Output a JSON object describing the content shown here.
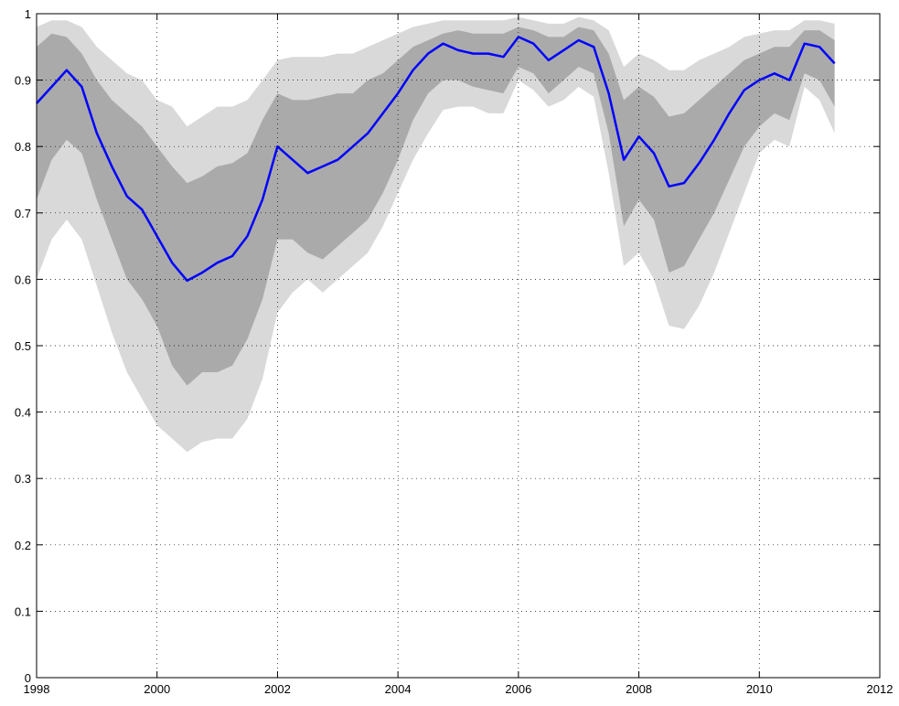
{
  "chart_data": {
    "type": "line",
    "x": [
      1998,
      1998.25,
      1998.5,
      1998.75,
      1999,
      1999.25,
      1999.5,
      1999.75,
      2000,
      2000.25,
      2000.5,
      2000.75,
      2001,
      2001.25,
      2001.5,
      2001.75,
      2002,
      2002.25,
      2002.5,
      2002.75,
      2003,
      2003.25,
      2003.5,
      2003.75,
      2004,
      2004.25,
      2004.5,
      2004.75,
      2005,
      2005.25,
      2005.5,
      2005.75,
      2006,
      2006.25,
      2006.5,
      2006.75,
      2007,
      2007.25,
      2007.5,
      2007.75,
      2008,
      2008.25,
      2008.5,
      2008.75,
      2009,
      2009.25,
      2009.5,
      2009.75,
      2010,
      2010.25,
      2010.5,
      2010.75,
      2011,
      2011.25
    ],
    "bands": [
      {
        "color": "#d9d9d9",
        "upper": [
          0.98,
          0.99,
          0.99,
          0.98,
          0.95,
          0.93,
          0.91,
          0.9,
          0.87,
          0.86,
          0.83,
          0.845,
          0.86,
          0.86,
          0.87,
          0.9,
          0.93,
          0.935,
          0.935,
          0.935,
          0.94,
          0.94,
          0.95,
          0.96,
          0.97,
          0.98,
          0.985,
          0.99,
          0.99,
          0.99,
          0.99,
          0.99,
          0.995,
          0.99,
          0.985,
          0.985,
          0.995,
          0.99,
          0.975,
          0.92,
          0.94,
          0.93,
          0.915,
          0.915,
          0.93,
          0.94,
          0.95,
          0.965,
          0.97,
          0.975,
          0.975,
          0.99,
          0.99,
          0.985
        ],
        "lower": [
          0.6,
          0.66,
          0.69,
          0.66,
          0.59,
          0.52,
          0.46,
          0.42,
          0.38,
          0.36,
          0.34,
          0.355,
          0.36,
          0.36,
          0.39,
          0.45,
          0.55,
          0.58,
          0.6,
          0.58,
          0.6,
          0.62,
          0.64,
          0.68,
          0.73,
          0.78,
          0.82,
          0.855,
          0.86,
          0.86,
          0.85,
          0.85,
          0.9,
          0.885,
          0.86,
          0.87,
          0.89,
          0.875,
          0.76,
          0.62,
          0.64,
          0.6,
          0.53,
          0.525,
          0.56,
          0.61,
          0.67,
          0.73,
          0.79,
          0.81,
          0.8,
          0.89,
          0.87,
          0.82
        ]
      },
      {
        "color": "#aaaaaa",
        "upper": [
          0.95,
          0.97,
          0.965,
          0.94,
          0.9,
          0.87,
          0.85,
          0.83,
          0.8,
          0.77,
          0.745,
          0.755,
          0.77,
          0.775,
          0.79,
          0.84,
          0.88,
          0.87,
          0.87,
          0.875,
          0.88,
          0.88,
          0.9,
          0.91,
          0.93,
          0.95,
          0.96,
          0.97,
          0.975,
          0.97,
          0.97,
          0.97,
          0.98,
          0.975,
          0.965,
          0.965,
          0.98,
          0.975,
          0.94,
          0.87,
          0.89,
          0.875,
          0.845,
          0.85,
          0.87,
          0.89,
          0.91,
          0.93,
          0.94,
          0.95,
          0.95,
          0.975,
          0.975,
          0.96
        ],
        "lower": [
          0.72,
          0.78,
          0.81,
          0.79,
          0.72,
          0.66,
          0.6,
          0.57,
          0.53,
          0.47,
          0.44,
          0.46,
          0.46,
          0.47,
          0.51,
          0.57,
          0.66,
          0.66,
          0.64,
          0.63,
          0.65,
          0.67,
          0.69,
          0.73,
          0.78,
          0.84,
          0.88,
          0.9,
          0.9,
          0.89,
          0.885,
          0.88,
          0.92,
          0.91,
          0.88,
          0.9,
          0.92,
          0.91,
          0.82,
          0.68,
          0.72,
          0.69,
          0.61,
          0.62,
          0.66,
          0.7,
          0.75,
          0.8,
          0.83,
          0.85,
          0.84,
          0.91,
          0.9,
          0.86
        ]
      }
    ],
    "series": [
      {
        "color": "#0000ff",
        "values": [
          0.865,
          0.89,
          0.915,
          0.89,
          0.82,
          0.77,
          0.725,
          0.705,
          0.665,
          0.625,
          0.598,
          0.61,
          0.625,
          0.635,
          0.665,
          0.72,
          0.8,
          0.78,
          0.76,
          0.77,
          0.78,
          0.8,
          0.82,
          0.85,
          0.88,
          0.915,
          0.94,
          0.955,
          0.945,
          0.94,
          0.94,
          0.935,
          0.965,
          0.955,
          0.93,
          0.945,
          0.96,
          0.95,
          0.88,
          0.78,
          0.815,
          0.79,
          0.74,
          0.745,
          0.775,
          0.81,
          0.85,
          0.885,
          0.9,
          0.91,
          0.9,
          0.955,
          0.95,
          0.925
        ]
      }
    ],
    "xlim": [
      1998,
      2012
    ],
    "xticks": [
      1998,
      2000,
      2002,
      2004,
      2006,
      2008,
      2010,
      2012
    ],
    "ylim": [
      0,
      1
    ],
    "yticks": [
      0,
      0.1,
      0.2,
      0.3,
      0.4,
      0.5,
      0.6,
      0.7,
      0.8,
      0.9,
      1
    ],
    "grid": true
  }
}
